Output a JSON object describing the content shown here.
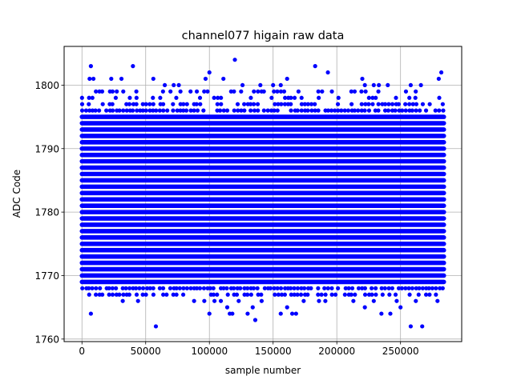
{
  "chart_data": {
    "type": "scatter",
    "title": "channel077 higain raw data",
    "xlabel": "sample number",
    "ylabel": "ADC Code",
    "xlim": [
      -14000,
      298000
    ],
    "ylim": [
      1759.6,
      1806.1
    ],
    "x_ticks": [
      0,
      50000,
      100000,
      150000,
      200000,
      250000
    ],
    "x_tick_labels": [
      "0",
      "50000",
      "100000",
      "150000",
      "200000",
      "250000"
    ],
    "y_ticks": [
      1760,
      1770,
      1780,
      1790,
      1800
    ],
    "y_tick_labels": [
      "1760",
      "1770",
      "1780",
      "1790",
      "1800"
    ],
    "grid": true,
    "marker_color": "#0000ff",
    "dense_band": {
      "x_range": [
        0,
        284000
      ],
      "y_continuous_range": [
        1769,
        1795
      ],
      "y_sparse_levels": [
        1767,
        1768,
        1796,
        1797,
        1798,
        1799
      ]
    },
    "outliers": [
      {
        "x": 7000,
        "y": 1803
      },
      {
        "x": 40000,
        "y": 1803
      },
      {
        "x": 120000,
        "y": 1804
      },
      {
        "x": 183000,
        "y": 1803
      },
      {
        "x": 282000,
        "y": 1802
      },
      {
        "x": 100000,
        "y": 1802
      },
      {
        "x": 193000,
        "y": 1802
      },
      {
        "x": 6000,
        "y": 1801
      },
      {
        "x": 9000,
        "y": 1801
      },
      {
        "x": 23000,
        "y": 1801
      },
      {
        "x": 31000,
        "y": 1801
      },
      {
        "x": 56000,
        "y": 1801
      },
      {
        "x": 97000,
        "y": 1801
      },
      {
        "x": 111000,
        "y": 1801
      },
      {
        "x": 161000,
        "y": 1801
      },
      {
        "x": 220000,
        "y": 1801
      },
      {
        "x": 280000,
        "y": 1801
      },
      {
        "x": 65000,
        "y": 1800
      },
      {
        "x": 72000,
        "y": 1800
      },
      {
        "x": 76000,
        "y": 1800
      },
      {
        "x": 126000,
        "y": 1800
      },
      {
        "x": 140000,
        "y": 1800
      },
      {
        "x": 150000,
        "y": 1800
      },
      {
        "x": 156000,
        "y": 1800
      },
      {
        "x": 222000,
        "y": 1800
      },
      {
        "x": 229000,
        "y": 1800
      },
      {
        "x": 233000,
        "y": 1800
      },
      {
        "x": 240000,
        "y": 1800
      },
      {
        "x": 258000,
        "y": 1800
      },
      {
        "x": 266000,
        "y": 1800
      },
      {
        "x": 7000,
        "y": 1764
      },
      {
        "x": 58000,
        "y": 1762
      },
      {
        "x": 136000,
        "y": 1763
      },
      {
        "x": 100000,
        "y": 1764
      },
      {
        "x": 116000,
        "y": 1764
      },
      {
        "x": 118000,
        "y": 1764
      },
      {
        "x": 130000,
        "y": 1764
      },
      {
        "x": 156000,
        "y": 1764
      },
      {
        "x": 165000,
        "y": 1764
      },
      {
        "x": 168000,
        "y": 1764
      },
      {
        "x": 235000,
        "y": 1764
      },
      {
        "x": 242000,
        "y": 1764
      },
      {
        "x": 258000,
        "y": 1762
      },
      {
        "x": 267000,
        "y": 1762
      },
      {
        "x": 114000,
        "y": 1765
      },
      {
        "x": 134000,
        "y": 1765
      },
      {
        "x": 161000,
        "y": 1765
      },
      {
        "x": 222000,
        "y": 1765
      },
      {
        "x": 250000,
        "y": 1765
      },
      {
        "x": 32000,
        "y": 1766
      },
      {
        "x": 44000,
        "y": 1766
      },
      {
        "x": 88000,
        "y": 1766
      },
      {
        "x": 96000,
        "y": 1766
      },
      {
        "x": 104000,
        "y": 1766
      },
      {
        "x": 109000,
        "y": 1766
      },
      {
        "x": 123000,
        "y": 1766
      },
      {
        "x": 141000,
        "y": 1766
      },
      {
        "x": 174000,
        "y": 1766
      },
      {
        "x": 186000,
        "y": 1766
      },
      {
        "x": 191000,
        "y": 1766
      },
      {
        "x": 213000,
        "y": 1766
      },
      {
        "x": 229000,
        "y": 1766
      },
      {
        "x": 247000,
        "y": 1766
      },
      {
        "x": 262000,
        "y": 1766
      },
      {
        "x": 279000,
        "y": 1766
      }
    ]
  }
}
